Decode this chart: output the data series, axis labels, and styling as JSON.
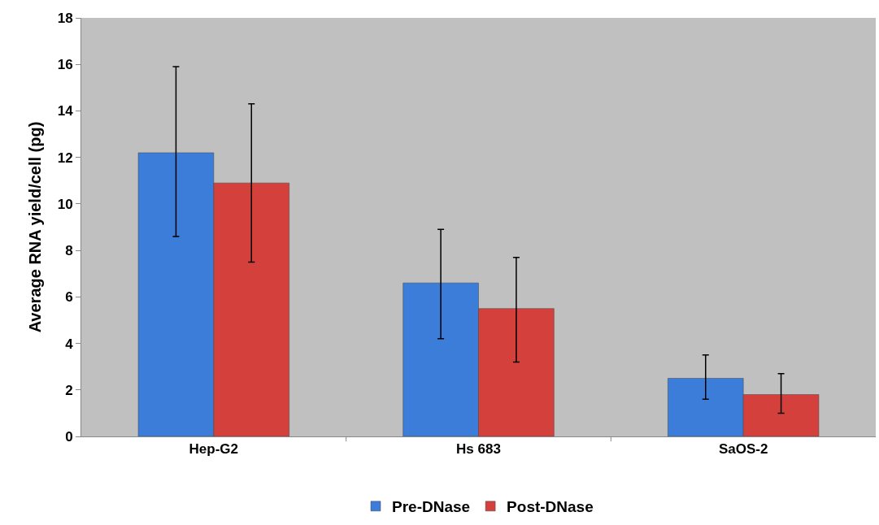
{
  "chart_data": {
    "type": "bar",
    "ylabel": "Average RNA yield/cell (pg)",
    "categories": [
      "Hep-G2",
      "Hs 683",
      "SaOS-2"
    ],
    "series": [
      {
        "name": "Pre-DNase",
        "color": "#3b7dd8",
        "values": [
          12.2,
          6.6,
          2.5
        ],
        "errors": [
          [
            8.6,
            15.9
          ],
          [
            4.2,
            8.9
          ],
          [
            1.6,
            3.5
          ]
        ]
      },
      {
        "name": "Post-DNase",
        "color": "#d4403c",
        "values": [
          10.9,
          5.5,
          1.8
        ],
        "errors": [
          [
            7.5,
            14.3
          ],
          [
            3.2,
            7.7
          ],
          [
            1.0,
            2.7
          ]
        ]
      }
    ],
    "ylim": [
      0,
      18
    ],
    "yticks": [
      0,
      2,
      4,
      6,
      8,
      10,
      12,
      14,
      16,
      18
    ],
    "grid": false,
    "legend": "bottom"
  }
}
